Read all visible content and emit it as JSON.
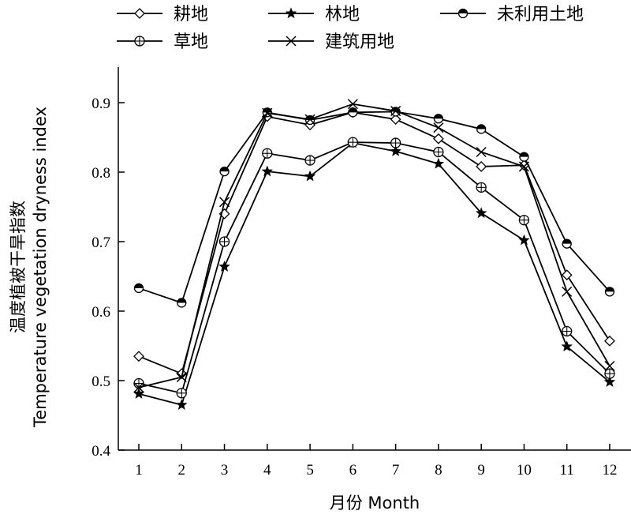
{
  "chart_data": {
    "type": "line",
    "title": "",
    "xlabel": "月份 Month",
    "ylabel_cn": "温度植被干旱指数",
    "ylabel_en": "Temperature vegetation dryness index",
    "x": [
      1,
      2,
      3,
      4,
      5,
      6,
      7,
      8,
      9,
      10,
      11,
      12
    ],
    "xlim": [
      0.5,
      12.5
    ],
    "ylim": [
      0.4,
      0.95
    ],
    "yticks": [
      0.4,
      0.5,
      0.6,
      0.7,
      0.8,
      0.9
    ],
    "ytick_labels": [
      "0.4",
      "0.5",
      "0.6",
      "0.7",
      "0.8",
      "0.9"
    ],
    "xtick_labels": [
      "1",
      "2",
      "3",
      "4",
      "5",
      "6",
      "7",
      "8",
      "9",
      "10",
      "11",
      "12"
    ],
    "grid": false,
    "legend_position": "top",
    "series": [
      {
        "name": "耕地",
        "marker": "diamond",
        "values": [
          0.535,
          0.51,
          0.74,
          0.88,
          0.868,
          0.886,
          0.876,
          0.848,
          0.808,
          0.81,
          0.652,
          0.557
        ]
      },
      {
        "name": "林地",
        "marker": "star",
        "values": [
          0.481,
          0.465,
          0.664,
          0.801,
          0.794,
          0.842,
          0.83,
          0.812,
          0.741,
          0.702,
          0.549,
          0.498
        ]
      },
      {
        "name": "未利用土地",
        "marker": "half-circle",
        "values": [
          0.633,
          0.612,
          0.801,
          0.886,
          0.875,
          0.886,
          0.887,
          0.877,
          0.862,
          0.822,
          0.697,
          0.628
        ]
      },
      {
        "name": "草地",
        "marker": "circle-plus",
        "values": [
          0.496,
          0.482,
          0.7,
          0.827,
          0.817,
          0.843,
          0.842,
          0.829,
          0.778,
          0.731,
          0.571,
          0.51
        ]
      },
      {
        "name": "建筑用地",
        "marker": "x",
        "values": [
          0.49,
          0.505,
          0.757,
          0.885,
          0.876,
          0.898,
          0.888,
          0.864,
          0.829,
          0.808,
          0.628,
          0.521
        ]
      }
    ]
  }
}
